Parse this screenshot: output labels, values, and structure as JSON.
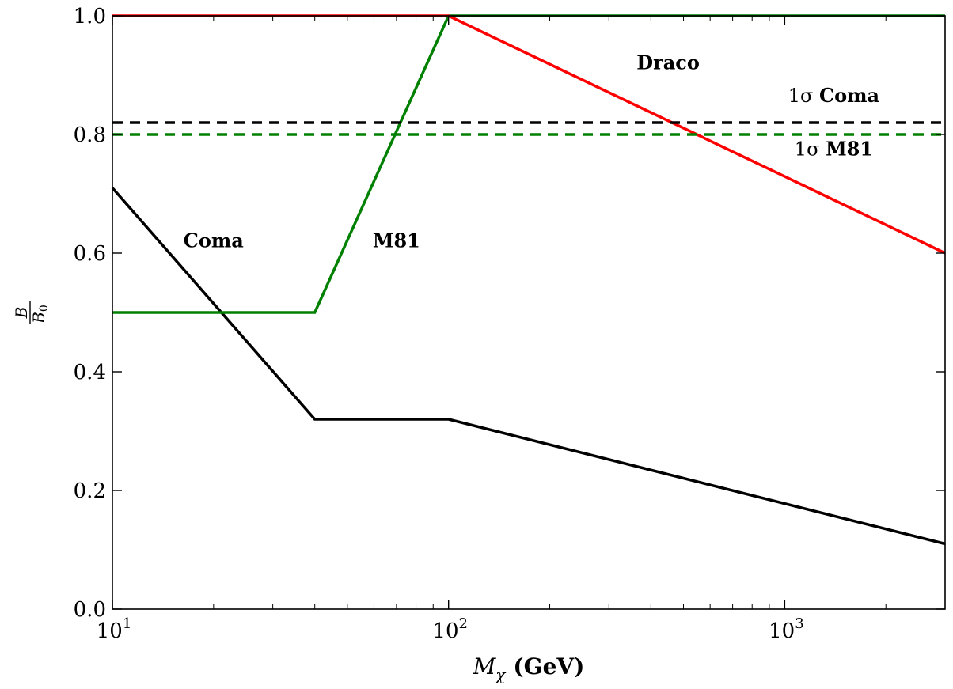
{
  "chart_data": {
    "type": "line",
    "title": "",
    "xlabel_parts": {
      "symbol": "M",
      "subscript": "χ",
      "unit": "(GeV)"
    },
    "ylabel_parts": {
      "numerator": "B",
      "denominator": "B",
      "denominator_subscript": "0"
    },
    "xscale": "log",
    "xlim": [
      10,
      3000
    ],
    "ylim": [
      0.0,
      1.0
    ],
    "grid": false,
    "legend": "none",
    "xticks": [
      {
        "value": 10,
        "base": "10",
        "exp": "1"
      },
      {
        "value": 100,
        "base": "10",
        "exp": "2"
      },
      {
        "value": 1000,
        "base": "10",
        "exp": "3"
      }
    ],
    "yticks": [
      {
        "value": 0.0,
        "label": "0.0"
      },
      {
        "value": 0.2,
        "label": "0.2"
      },
      {
        "value": 0.4,
        "label": "0.4"
      },
      {
        "value": 0.6,
        "label": "0.6"
      },
      {
        "value": 0.8,
        "label": "0.8"
      },
      {
        "value": 1.0,
        "label": "1.0"
      }
    ],
    "series": [
      {
        "key": "coma",
        "color": "#000000",
        "style": "solid",
        "x": [
          10,
          40,
          100,
          3000
        ],
        "y": [
          0.71,
          0.32,
          0.32,
          0.11
        ]
      },
      {
        "key": "m81",
        "color": "#008000",
        "style": "solid",
        "x": [
          10,
          40,
          100,
          3000
        ],
        "y": [
          0.5,
          0.5,
          1.0,
          1.0
        ]
      },
      {
        "key": "draco",
        "color": "#ff0000",
        "style": "solid",
        "x": [
          10,
          100,
          3000
        ],
        "y": [
          1.0,
          1.0,
          0.6
        ]
      },
      {
        "key": "coma-1sigma",
        "color": "#000000",
        "style": "dashed",
        "x": [
          10,
          3000
        ],
        "y": [
          0.82,
          0.82
        ]
      },
      {
        "key": "m81-1sigma",
        "color": "#008000",
        "style": "dashed",
        "x": [
          10,
          3000
        ],
        "y": [
          0.8,
          0.8
        ]
      }
    ],
    "annotations": [
      {
        "key": "coma",
        "text": "Coma",
        "x": 20,
        "y": 0.61
      },
      {
        "key": "m81",
        "text": "M81",
        "x": 70,
        "y": 0.61
      },
      {
        "key": "draco",
        "text": "Draco",
        "x": 450,
        "y": 0.91
      },
      {
        "key": "coma-1sigma",
        "prefix": "1σ",
        "text": "Coma",
        "x": 1400,
        "y": 0.855
      },
      {
        "key": "m81-1sigma",
        "prefix": "1σ",
        "text": "M81",
        "x": 1400,
        "y": 0.765
      }
    ]
  }
}
